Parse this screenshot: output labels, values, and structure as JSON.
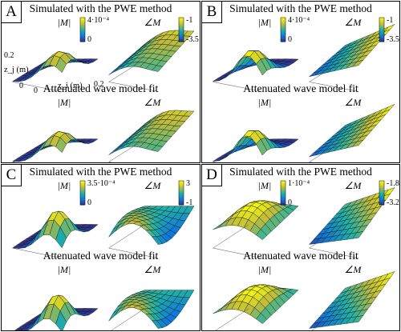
{
  "figure": {
    "panels": [
      {
        "letter": "A",
        "top_title": "Simulated with the PWE method",
        "bottom_title": "Attenuated wave model fit",
        "mag_label": "|M|",
        "phase_label": "∠M",
        "mag_colorbar": [
          "4·10⁻⁴",
          "0"
        ],
        "phase_colorbar": [
          "-1",
          "-3.5"
        ],
        "axes": {
          "z_label": "z_j (m)",
          "x_label": "z_i (m)",
          "z_ticks": [
            "0.2",
            "0"
          ],
          "x_ticks": [
            "0",
            "0",
            "0.2"
          ]
        }
      },
      {
        "letter": "B",
        "top_title": "Simulated with the PWE method",
        "bottom_title": "Attenuated wave model fit",
        "mag_label": "|M|",
        "phase_label": "∠M",
        "mag_colorbar": [
          "4·10⁻⁴",
          "0"
        ],
        "phase_colorbar": [
          "-1",
          "-3.5"
        ]
      },
      {
        "letter": "C",
        "top_title": "Simulated with the PWE method",
        "bottom_title": "Attenuated wave model fit",
        "mag_label": "|M|",
        "phase_label": "∠M",
        "mag_colorbar": [
          "3.5·10⁻⁴",
          "0"
        ],
        "phase_colorbar": [
          "3",
          "-1"
        ]
      },
      {
        "letter": "D",
        "top_title": "Simulated with the PWE method",
        "bottom_title": "Attenuated wave model fit",
        "mag_label": "|M|",
        "phase_label": "∠M",
        "mag_colorbar": [
          "1·10⁻⁴",
          "0"
        ],
        "phase_colorbar": [
          "-1.8",
          "-3.2"
        ]
      }
    ]
  },
  "colors": {
    "low": "#352a87",
    "mid": "#21b1a5",
    "high": "#f9fb0e",
    "mesh": "#111111"
  },
  "chart_data": {
    "type": "surface",
    "description_of_panels": [
      "A",
      "B",
      "C",
      "D"
    ],
    "axes": {
      "x": "z_i (m)",
      "y": "z_j (m)",
      "range": [
        0,
        0.2
      ]
    },
    "colorbars": [
      {
        "panel": "A",
        "magnitude_range": [
          0,
          0.0004
        ],
        "phase_range": [
          -3.5,
          -1
        ]
      },
      {
        "panel": "B",
        "magnitude_range": [
          0,
          0.0004
        ],
        "phase_range": [
          -3.5,
          -1
        ]
      },
      {
        "panel": "C",
        "magnitude_range": [
          0,
          0.00035
        ],
        "phase_range": [
          -1,
          3
        ]
      },
      {
        "panel": "D",
        "magnitude_range": [
          0,
          0.0001
        ],
        "phase_range": [
          -3.2,
          -1.8
        ]
      }
    ]
  }
}
